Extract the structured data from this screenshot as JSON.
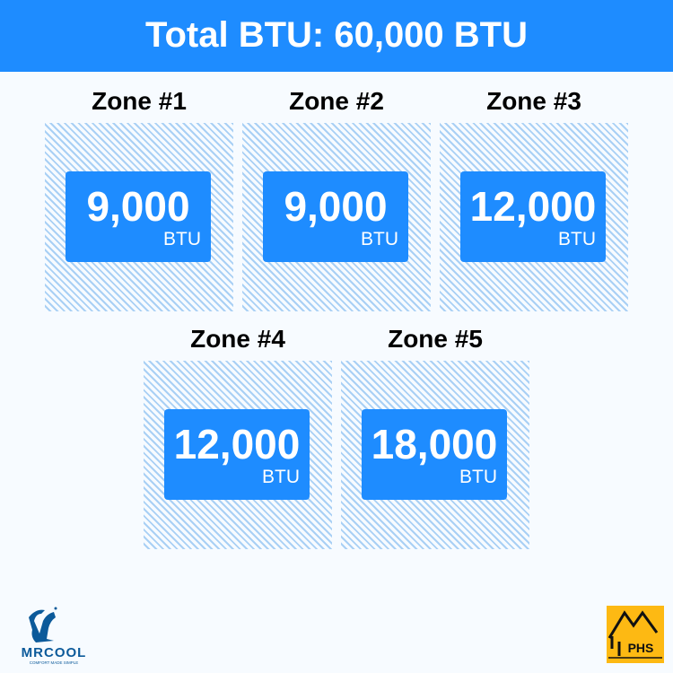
{
  "header": {
    "title": "Total BTU: 60,000 BTU"
  },
  "zones": [
    {
      "label": "Zone #1",
      "value": "9,000",
      "unit": "BTU"
    },
    {
      "label": "Zone #2",
      "value": "9,000",
      "unit": "BTU"
    },
    {
      "label": "Zone #3",
      "value": "12,000",
      "unit": "BTU"
    },
    {
      "label": "Zone #4",
      "value": "12,000",
      "unit": "BTU"
    },
    {
      "label": "Zone #5",
      "value": "18,000",
      "unit": "BTU"
    }
  ],
  "logos": {
    "mrcool": "MRCOOL",
    "mrcool_tagline": "COMFORT MADE SIMPLE",
    "phs": "PHS"
  },
  "colors": {
    "accent": "#1e8cff",
    "hatch": "#a9d0f5",
    "background": "#f7fbff",
    "phs": "#fdb913"
  }
}
